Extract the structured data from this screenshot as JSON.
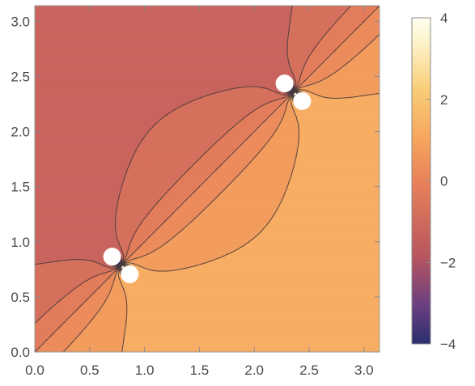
{
  "chart_data": {
    "type": "contour",
    "title": "",
    "xlabel": "",
    "ylabel": "",
    "xlim": [
      0,
      3.14159
    ],
    "ylim": [
      0,
      3.14159
    ],
    "x_ticks": [
      "0.0",
      "0.5",
      "1.0",
      "1.5",
      "2.0",
      "2.5",
      "3.0"
    ],
    "y_ticks": [
      "0.0",
      "0.5",
      "1.0",
      "1.5",
      "2.0",
      "2.5",
      "3.0"
    ],
    "colorbar": {
      "range": [
        -4,
        4
      ],
      "ticks": [
        "4",
        "2",
        "0",
        "−2",
        "−4"
      ],
      "colors": [
        "#2b2f6e",
        "#6b3f80",
        "#b8565f",
        "#e9825a",
        "#f6a65e",
        "#f9cd78",
        "#fdf2c8",
        "#fffff0"
      ]
    },
    "field": {
      "description_function": "contour levels of a potential with dipole-like singularities",
      "dipoles": [
        {
          "x": 0.785,
          "y": 0.785
        },
        {
          "x": 2.356,
          "y": 2.356
        }
      ],
      "levels": [
        -4,
        -3.5,
        -3,
        -2.5,
        -2,
        -1.5,
        -1,
        -0.5,
        0,
        0.5,
        1,
        1.5,
        2,
        2.5,
        3,
        3.5,
        4
      ]
    }
  }
}
